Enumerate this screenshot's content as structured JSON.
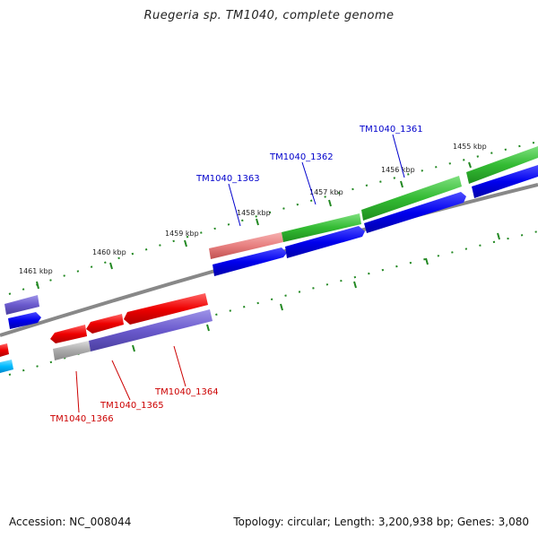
{
  "title": "Ruegeria sp. TM1040, complete genome",
  "footer": {
    "accession": "Accession: NC_008044",
    "summary": "Topology: circular; Length: 3,200,938 bp; Genes: 3,080"
  },
  "ticks": [
    "1455 kbp",
    "1456 kbp",
    "1457 kbp",
    "1458 kbp",
    "1459 kbp",
    "1460 kbp",
    "1461 kbp"
  ],
  "genes_forward": [
    "TM1040_1361",
    "TM1040_1362",
    "TM1040_1363"
  ],
  "genes_reverse": [
    "TM1040_1364",
    "TM1040_1365",
    "TM1040_1366"
  ],
  "colors": {
    "forward_label": "#0000cc",
    "reverse_label": "#cc0000",
    "green": "#33bb33",
    "blue": "#0000ee",
    "red": "#ee0000",
    "purple": "#6a5acd",
    "pink": "#e88080",
    "gray": "#aaaaaa",
    "cyan": "#00bbff",
    "tick": "#228822",
    "backbone": "#888888"
  }
}
